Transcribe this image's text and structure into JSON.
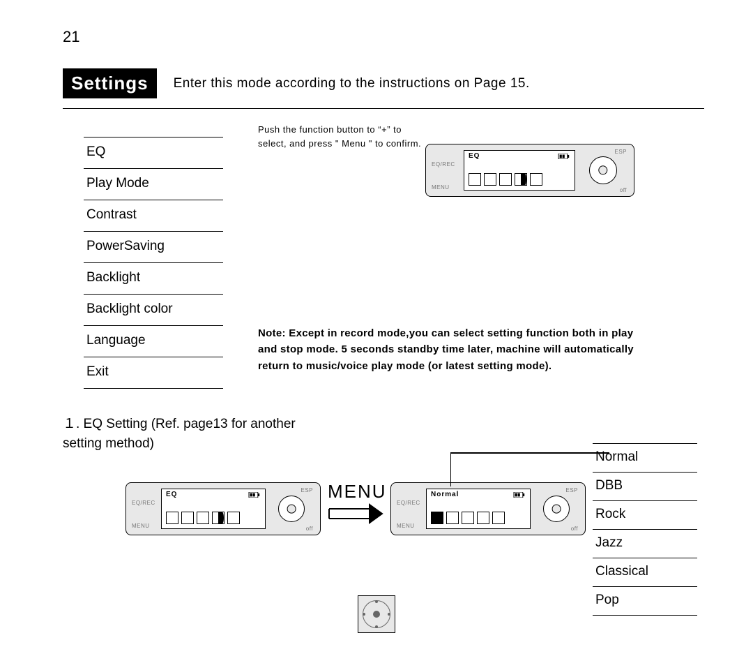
{
  "page_number": "21",
  "header": {
    "badge": "Settings",
    "text": "Enter this mode according to the instructions on Page 15."
  },
  "hint": "Push the  function button to “+” to\nselect, and press \" Menu \" to confirm.",
  "settings_items": [
    "EQ",
    "Play Mode",
    "Contrast",
    "PowerSaving",
    "Backlight",
    "Backlight color",
    "Language",
    "Exit"
  ],
  "note": "Note: Except in record mode,you can select setting function both in play and stop mode. 5 seconds standby time later, machine will automatically return to music/voice play mode (or latest setting mode).",
  "eq_section_title": "１. EQ Setting (Ref. page13 for another setting method)",
  "menu_word": "MENU",
  "eq_options": [
    "Normal",
    "DBB",
    "Rock",
    "Jazz",
    "Classical",
    "Pop"
  ],
  "device_labels": {
    "tl": "EQ/REC",
    "bl": "MENU",
    "tr": "ESP",
    "br": "off"
  },
  "device_top": {
    "screen_title": "EQ",
    "filled_index": -1,
    "half_index": 3
  },
  "device_left": {
    "screen_title": "EQ",
    "filled_index": -1,
    "half_index": 3
  },
  "device_right": {
    "screen_title": "Normal",
    "filled_index": 0,
    "half_index": -1
  },
  "colors": {
    "bg": "#ffffff",
    "device_bg": "#e8e8e8",
    "line": "#000000",
    "muted": "#777777"
  }
}
